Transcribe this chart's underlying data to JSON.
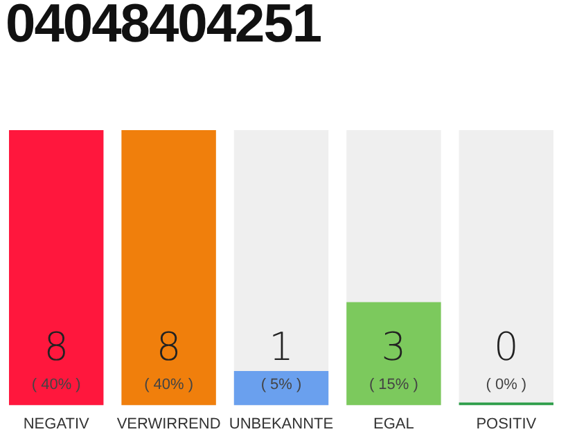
{
  "chart_data": {
    "type": "bar",
    "title": "04048404251",
    "categories": [
      "NEGATIV",
      "VERWIRREND",
      "UNBEKANNTE",
      "EGAL",
      "POSITIV"
    ],
    "values": [
      8,
      8,
      1,
      3,
      0
    ],
    "colors": [
      "#ff173d",
      "#f07f0c",
      "#6aa0ee",
      "#7cc95d",
      "#2e9e4a"
    ],
    "value_labels": [
      "8\n( 40% )",
      "8\n( 40% )",
      "1\n( 5% )",
      "3\n( 15% )",
      "0\n( 0% )"
    ],
    "ylim": [
      0,
      8
    ],
    "tick_labels": "x",
    "grid": false,
    "legend": false
  }
}
